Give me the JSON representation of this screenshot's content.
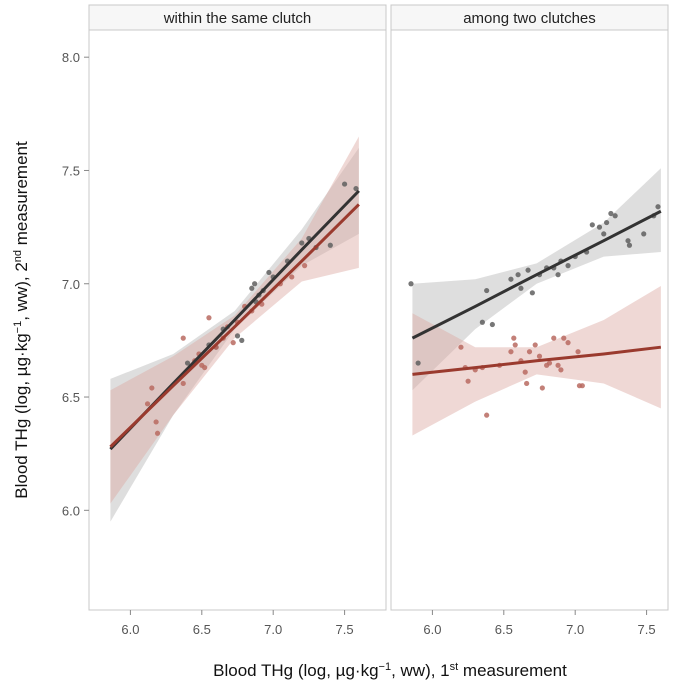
{
  "chart_data": [
    {
      "type": "scatter",
      "title": "within the same clutch",
      "xlim": [
        5.71,
        7.79
      ],
      "ylim": [
        5.56,
        8.12
      ],
      "xticks": [
        {
          "value": 6.0,
          "label": "6.0"
        },
        {
          "value": 6.5,
          "label": "6.5"
        },
        {
          "value": 7.0,
          "label": "7.0"
        },
        {
          "value": 7.5,
          "label": "7.5"
        }
      ],
      "yticks": [
        {
          "value": 6.0,
          "label": "6.0"
        },
        {
          "value": 6.5,
          "label": "6.5"
        },
        {
          "value": 7.0,
          "label": "7.0"
        },
        {
          "value": 7.5,
          "label": "7.5"
        },
        {
          "value": 8.0,
          "label": "8.0"
        }
      ],
      "series": [
        {
          "color": "#5f5f5f",
          "line_color": "#333333",
          "band_color": "#b5b5b5",
          "x": [
            6.4,
            6.55,
            6.65,
            6.75,
            6.78,
            6.85,
            6.87,
            6.9,
            6.93,
            6.97,
            7.0,
            7.1,
            7.2,
            7.25,
            7.3,
            7.4,
            7.5,
            7.58,
            6.6,
            6.88
          ],
          "values": [
            6.65,
            6.73,
            6.8,
            6.77,
            6.75,
            6.98,
            7.0,
            6.95,
            6.97,
            7.05,
            7.03,
            7.1,
            7.18,
            7.2,
            7.16,
            7.17,
            7.44,
            7.42,
            6.72,
            6.92
          ],
          "fit": {
            "x": [
              5.86,
              6.3,
              6.73,
              7.2,
              7.6
            ],
            "values": [
              6.27,
              6.56,
              6.84,
              7.15,
              7.41
            ],
            "lower": [
              5.95,
              6.42,
              6.8,
              7.08,
              7.22
            ],
            "upper": [
              6.58,
              6.69,
              6.88,
              7.24,
              7.6
            ]
          }
        },
        {
          "color": "#b86a60",
          "line_color": "#9a3a2e",
          "band_color": "#dba9a1",
          "x": [
            6.12,
            6.15,
            6.18,
            6.19,
            6.37,
            6.37,
            6.45,
            6.48,
            6.5,
            6.52,
            6.55,
            6.6,
            6.65,
            6.68,
            6.72,
            6.75,
            6.8,
            6.85,
            6.92,
            7.05,
            7.13,
            7.22
          ],
          "values": [
            6.47,
            6.54,
            6.39,
            6.34,
            6.76,
            6.56,
            6.66,
            6.69,
            6.64,
            6.63,
            6.85,
            6.72,
            6.76,
            6.81,
            6.74,
            6.83,
            6.9,
            6.88,
            6.91,
            7.0,
            7.03,
            7.08
          ],
          "fit": {
            "x": [
              5.86,
              6.3,
              6.73,
              7.2,
              7.6
            ],
            "values": [
              6.28,
              6.55,
              6.81,
              7.1,
              7.35
            ],
            "lower": [
              6.03,
              6.42,
              6.76,
              7.01,
              7.07
            ],
            "upper": [
              6.53,
              6.68,
              6.86,
              7.2,
              7.65
            ]
          }
        }
      ]
    },
    {
      "type": "scatter",
      "title": "among two clutches",
      "xlim": [
        5.71,
        7.65
      ],
      "ylim": [
        5.56,
        8.12
      ],
      "xticks": [
        {
          "value": 6.0,
          "label": "6.0"
        },
        {
          "value": 6.5,
          "label": "6.5"
        },
        {
          "value": 7.0,
          "label": "7.0"
        },
        {
          "value": 7.5,
          "label": "7.5"
        }
      ],
      "series": [
        {
          "color": "#5f5f5f",
          "line_color": "#333333",
          "band_color": "#b5b5b5",
          "x": [
            5.85,
            5.9,
            6.38,
            6.35,
            6.42,
            6.55,
            6.6,
            6.62,
            6.67,
            6.7,
            6.75,
            6.8,
            6.85,
            6.88,
            6.9,
            6.95,
            7.0,
            7.08,
            7.12,
            7.17,
            7.2,
            7.22,
            7.25,
            7.28,
            7.37,
            7.38,
            7.48,
            7.55,
            7.58
          ],
          "values": [
            7.0,
            6.65,
            6.97,
            6.83,
            6.82,
            7.02,
            7.04,
            6.98,
            7.06,
            6.96,
            7.04,
            7.07,
            7.07,
            7.04,
            7.1,
            7.08,
            7.12,
            7.14,
            7.26,
            7.25,
            7.22,
            7.27,
            7.31,
            7.3,
            7.19,
            7.17,
            7.22,
            7.3,
            7.34
          ],
          "fit": {
            "x": [
              5.86,
              6.3,
              6.73,
              7.2,
              7.6
            ],
            "values": [
              6.76,
              6.9,
              7.04,
              7.19,
              7.32
            ],
            "lower": [
              6.53,
              6.8,
              7.0,
              7.12,
              7.14
            ],
            "upper": [
              7.0,
              7.02,
              7.09,
              7.27,
              7.51
            ]
          }
        },
        {
          "color": "#b86a60",
          "line_color": "#9a3a2e",
          "band_color": "#dba9a1",
          "x": [
            6.2,
            6.23,
            6.25,
            6.3,
            6.35,
            6.38,
            6.47,
            6.55,
            6.57,
            6.58,
            6.62,
            6.65,
            6.66,
            6.68,
            6.72,
            6.75,
            6.77,
            6.8,
            6.82,
            6.85,
            6.88,
            6.9,
            6.92,
            6.95,
            7.02,
            7.05,
            7.03
          ],
          "values": [
            6.72,
            6.63,
            6.57,
            6.62,
            6.63,
            6.42,
            6.64,
            6.7,
            6.76,
            6.73,
            6.66,
            6.61,
            6.56,
            6.7,
            6.73,
            6.68,
            6.54,
            6.64,
            6.65,
            6.76,
            6.64,
            6.62,
            6.76,
            6.74,
            6.7,
            6.55,
            6.55
          ],
          "fit": {
            "x": [
              5.86,
              6.3,
              6.73,
              7.2,
              7.6
            ],
            "values": [
              6.6,
              6.63,
              6.66,
              6.69,
              6.72
            ],
            "lower": [
              6.33,
              6.48,
              6.6,
              6.56,
              6.45
            ],
            "upper": [
              6.87,
              6.72,
              6.72,
              6.84,
              6.99
            ]
          }
        }
      ]
    }
  ],
  "axis_labels": {
    "x": {
      "parts": [
        "Blood THg (log, µg·kg",
        "−1",
        ", ww), 1",
        "st",
        " measurement"
      ],
      "sup": [
        false,
        true,
        false,
        true,
        false
      ]
    },
    "y": {
      "parts": [
        "Blood THg (log, µg·kg",
        "−1",
        ", ww), 2",
        "nd",
        " measurement"
      ],
      "sup": [
        false,
        true,
        false,
        true,
        false
      ]
    }
  }
}
